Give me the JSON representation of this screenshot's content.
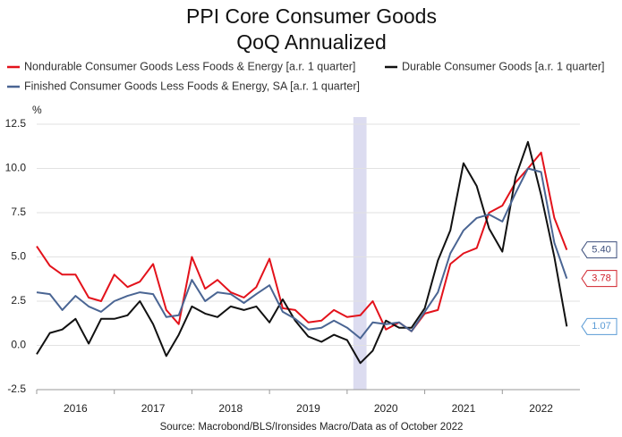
{
  "chart_data": {
    "type": "line",
    "title": "PPI Core Consumer Goods",
    "subtitle": "QoQ Annualized",
    "y_unit": "%",
    "source": "Source: Macrobond/BLS/Ironsides Macro/Data as of October 2022",
    "x": [
      2016.0,
      2016.17,
      2016.33,
      2016.5,
      2016.67,
      2016.83,
      2017.0,
      2017.17,
      2017.33,
      2017.5,
      2017.67,
      2017.83,
      2018.0,
      2018.17,
      2018.33,
      2018.5,
      2018.67,
      2018.83,
      2019.0,
      2019.17,
      2019.33,
      2019.5,
      2019.67,
      2019.83,
      2020.0,
      2020.17,
      2020.33,
      2020.5,
      2020.67,
      2020.83,
      2021.0,
      2021.17,
      2021.33,
      2021.5,
      2021.67,
      2021.83,
      2022.0,
      2022.17,
      2022.33,
      2022.5,
      2022.67,
      2022.83
    ],
    "series": [
      {
        "name": "Nondurable Consumer Goods Less Foods & Energy [a.r. 1 quarter]",
        "color": "#e3121b",
        "label_color": "#3d4f7c",
        "values": [
          5.6,
          4.5,
          4.0,
          4.0,
          2.7,
          2.5,
          4.0,
          3.3,
          3.6,
          4.6,
          2.0,
          1.2,
          5.0,
          3.2,
          3.7,
          3.0,
          2.7,
          3.3,
          4.9,
          2.1,
          2.0,
          1.3,
          1.4,
          2.0,
          1.6,
          1.7,
          2.5,
          0.9,
          1.3,
          0.8,
          1.8,
          2.0,
          4.6,
          5.2,
          5.5,
          7.5,
          7.9,
          9.2,
          10.0,
          10.9,
          7.2,
          5.4
        ],
        "end_label": "5.40"
      },
      {
        "name": "Durable Consumer Goods [a.r. 1 quarter]",
        "color": "#111111",
        "label_color": "#5b9bd5",
        "values": [
          -0.5,
          0.7,
          0.9,
          1.5,
          0.1,
          1.5,
          1.5,
          1.7,
          2.5,
          1.2,
          -0.6,
          0.6,
          2.2,
          1.8,
          1.6,
          2.2,
          2.0,
          2.2,
          1.3,
          2.6,
          1.4,
          0.5,
          0.2,
          0.6,
          0.3,
          -1.0,
          -0.3,
          1.4,
          1.0,
          1.0,
          2.1,
          4.8,
          6.5,
          10.3,
          9.0,
          6.6,
          5.3,
          9.5,
          11.5,
          8.5,
          5.0,
          1.07
        ],
        "end_label": "1.07"
      },
      {
        "name": "Finished Consumer Goods Less Foods & Energy, SA [a.r. 1 quarter]",
        "color": "#4a6593",
        "label_color": "#d0202a",
        "values": [
          3.0,
          2.9,
          2.0,
          2.8,
          2.2,
          1.9,
          2.5,
          2.8,
          3.0,
          2.9,
          1.6,
          1.7,
          3.7,
          2.5,
          3.0,
          2.9,
          2.4,
          2.9,
          3.4,
          1.9,
          1.5,
          0.9,
          1.0,
          1.4,
          1.0,
          0.4,
          1.3,
          1.2,
          1.3,
          0.8,
          1.9,
          3.0,
          5.2,
          6.5,
          7.2,
          7.4,
          7.0,
          8.6,
          10.0,
          9.8,
          5.8,
          3.78
        ],
        "end_label": "3.78"
      }
    ],
    "xlim": [
      2016,
      2023
    ],
    "xticks": [
      {
        "value": 2016,
        "label": "2016"
      },
      {
        "value": 2017,
        "label": "2017"
      },
      {
        "value": 2018,
        "label": "2018"
      },
      {
        "value": 2019,
        "label": "2019"
      },
      {
        "value": 2020,
        "label": "2020"
      },
      {
        "value": 2021,
        "label": "2021"
      },
      {
        "value": 2022,
        "label": "2022"
      }
    ],
    "ylim": [
      -2.5,
      12.5
    ],
    "yticks": [
      {
        "value": -2.5,
        "label": "-2.5"
      },
      {
        "value": 0,
        "label": "0.0"
      },
      {
        "value": 2.5,
        "label": "2.5"
      },
      {
        "value": 5,
        "label": "5.0"
      },
      {
        "value": 7.5,
        "label": "7.5"
      },
      {
        "value": 10,
        "label": "10.0"
      },
      {
        "value": 12.5,
        "label": "12.5"
      }
    ],
    "shade": [
      2020.08,
      2020.25
    ],
    "grid": true
  }
}
